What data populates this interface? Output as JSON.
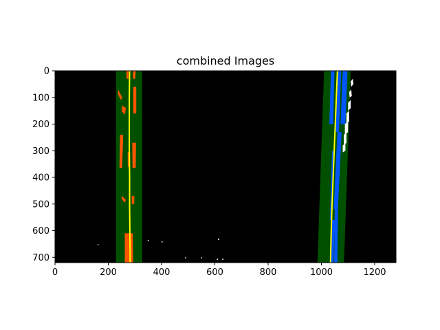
{
  "chart_data": {
    "type": "image",
    "title": "combined Images",
    "xlabel": "",
    "ylabel": "",
    "xlim": [
      0,
      1280
    ],
    "ylim": [
      720,
      0
    ],
    "x_ticks": [
      0,
      200,
      400,
      600,
      800,
      1000,
      1200
    ],
    "y_ticks": [
      0,
      100,
      200,
      300,
      400,
      500,
      600,
      700
    ],
    "background_color": "#000000",
    "lane_window_color": "#005000",
    "fit_line_color": "#ffff00",
    "left_pixels_color": "#ff5500",
    "right_pixels_color": "#0055ff",
    "noise_color": "#ffffff",
    "left_window": {
      "top": [
        [
          229,
          0
        ],
        [
          327,
          0
        ]
      ],
      "bottom": [
        [
          229,
          720
        ],
        [
          327,
          720
        ]
      ]
    },
    "right_window": {
      "top": [
        [
          1010,
          0
        ],
        [
          1110,
          0
        ]
      ],
      "bottom": [
        [
          985,
          720
        ],
        [
          1085,
          720
        ]
      ]
    },
    "left_fit_line": [
      [
        280,
        0
      ],
      [
        279,
        100
      ],
      [
        279,
        200
      ],
      [
        279,
        300
      ],
      [
        280,
        400
      ],
      [
        280,
        500
      ],
      [
        281,
        600
      ],
      [
        282,
        720
      ]
    ],
    "right_fit_line": [
      [
        1060,
        0
      ],
      [
        1056,
        100
      ],
      [
        1052,
        200
      ],
      [
        1048,
        300
      ],
      [
        1044,
        400
      ],
      [
        1040,
        500
      ],
      [
        1037,
        600
      ],
      [
        1034,
        720
      ]
    ],
    "left_pixel_blobs": [
      [
        [
          268,
          0
        ],
        [
          276,
          0
        ],
        [
          276,
          30
        ],
        [
          268,
          30
        ]
      ],
      [
        [
          293,
          0
        ],
        [
          303,
          0
        ],
        [
          301,
          30
        ],
        [
          293,
          30
        ]
      ],
      [
        [
          237,
          70
        ],
        [
          252,
          100
        ],
        [
          248,
          110
        ],
        [
          237,
          90
        ]
      ],
      [
        [
          253,
          130
        ],
        [
          266,
          140
        ],
        [
          262,
          165
        ],
        [
          250,
          150
        ]
      ],
      [
        [
          294,
          60
        ],
        [
          305,
          60
        ],
        [
          305,
          160
        ],
        [
          294,
          160
        ]
      ],
      [
        [
          244,
          240
        ],
        [
          256,
          240
        ],
        [
          252,
          365
        ],
        [
          242,
          365
        ]
      ],
      [
        [
          290,
          270
        ],
        [
          304,
          270
        ],
        [
          303,
          365
        ],
        [
          291,
          365
        ]
      ],
      [
        [
          273,
          305
        ],
        [
          282,
          305
        ],
        [
          282,
          360
        ],
        [
          273,
          360
        ]
      ],
      [
        [
          252,
          470
        ],
        [
          266,
          485
        ],
        [
          262,
          495
        ],
        [
          250,
          480
        ]
      ],
      [
        [
          288,
          470
        ],
        [
          298,
          470
        ],
        [
          297,
          500
        ],
        [
          288,
          500
        ]
      ],
      [
        [
          262,
          610
        ],
        [
          292,
          610
        ],
        [
          293,
          720
        ],
        [
          262,
          720
        ]
      ]
    ],
    "right_pixel_blobs": [
      [
        [
          1036,
          0
        ],
        [
          1049,
          0
        ],
        [
          1044,
          200
        ],
        [
          1030,
          200
        ]
      ],
      [
        [
          1059,
          0
        ],
        [
          1074,
          0
        ],
        [
          1066,
          230
        ],
        [
          1052,
          230
        ]
      ],
      [
        [
          1080,
          0
        ],
        [
          1098,
          0
        ],
        [
          1090,
          200
        ],
        [
          1072,
          200
        ]
      ],
      [
        [
          1060,
          230
        ],
        [
          1076,
          230
        ],
        [
          1062,
          520
        ],
        [
          1046,
          520
        ]
      ],
      [
        [
          1040,
          300
        ],
        [
          1048,
          300
        ],
        [
          1040,
          560
        ],
        [
          1032,
          560
        ]
      ],
      [
        [
          1038,
          560
        ],
        [
          1050,
          560
        ],
        [
          1046,
          720
        ],
        [
          1032,
          720
        ]
      ],
      [
        [
          1050,
          520
        ],
        [
          1062,
          520
        ],
        [
          1060,
          720
        ],
        [
          1048,
          720
        ]
      ]
    ],
    "noise_pixels": [
      [
        [
          1110,
          40
        ],
        [
          1118,
          30
        ],
        [
          1120,
          50
        ],
        [
          1112,
          60
        ]
      ],
      [
        [
          1104,
          80
        ],
        [
          1112,
          70
        ],
        [
          1114,
          95
        ],
        [
          1106,
          100
        ]
      ],
      [
        [
          1100,
          120
        ],
        [
          1110,
          110
        ],
        [
          1110,
          140
        ],
        [
          1100,
          150
        ]
      ],
      [
        [
          1094,
          160
        ],
        [
          1104,
          150
        ],
        [
          1104,
          190
        ],
        [
          1094,
          200
        ]
      ],
      [
        [
          1088,
          200
        ],
        [
          1100,
          190
        ],
        [
          1100,
          230
        ],
        [
          1088,
          240
        ]
      ],
      [
        [
          1084,
          240
        ],
        [
          1094,
          232
        ],
        [
          1094,
          270
        ],
        [
          1084,
          280
        ]
      ],
      [
        [
          1080,
          280
        ],
        [
          1090,
          272
        ],
        [
          1090,
          300
        ],
        [
          1080,
          306
        ]
      ],
      [
        [
          160,
          650
        ],
        [
          163,
          650
        ],
        [
          163,
          654
        ],
        [
          160,
          654
        ]
      ],
      [
        [
          348,
          635
        ],
        [
          352,
          635
        ],
        [
          352,
          639
        ],
        [
          348,
          639
        ]
      ],
      [
        [
          400,
          640
        ],
        [
          404,
          640
        ],
        [
          404,
          644
        ],
        [
          400,
          644
        ]
      ],
      [
        [
          612,
          630
        ],
        [
          616,
          630
        ],
        [
          616,
          635
        ],
        [
          612,
          635
        ]
      ],
      [
        [
          608,
          705
        ],
        [
          612,
          705
        ],
        [
          612,
          710
        ],
        [
          608,
          710
        ]
      ],
      [
        [
          628,
          705
        ],
        [
          632,
          705
        ],
        [
          632,
          710
        ],
        [
          628,
          710
        ]
      ],
      [
        [
          488,
          700
        ],
        [
          492,
          700
        ],
        [
          492,
          704
        ],
        [
          488,
          704
        ]
      ],
      [
        [
          548,
          700
        ],
        [
          552,
          700
        ],
        [
          552,
          704
        ],
        [
          548,
          704
        ]
      ]
    ]
  }
}
